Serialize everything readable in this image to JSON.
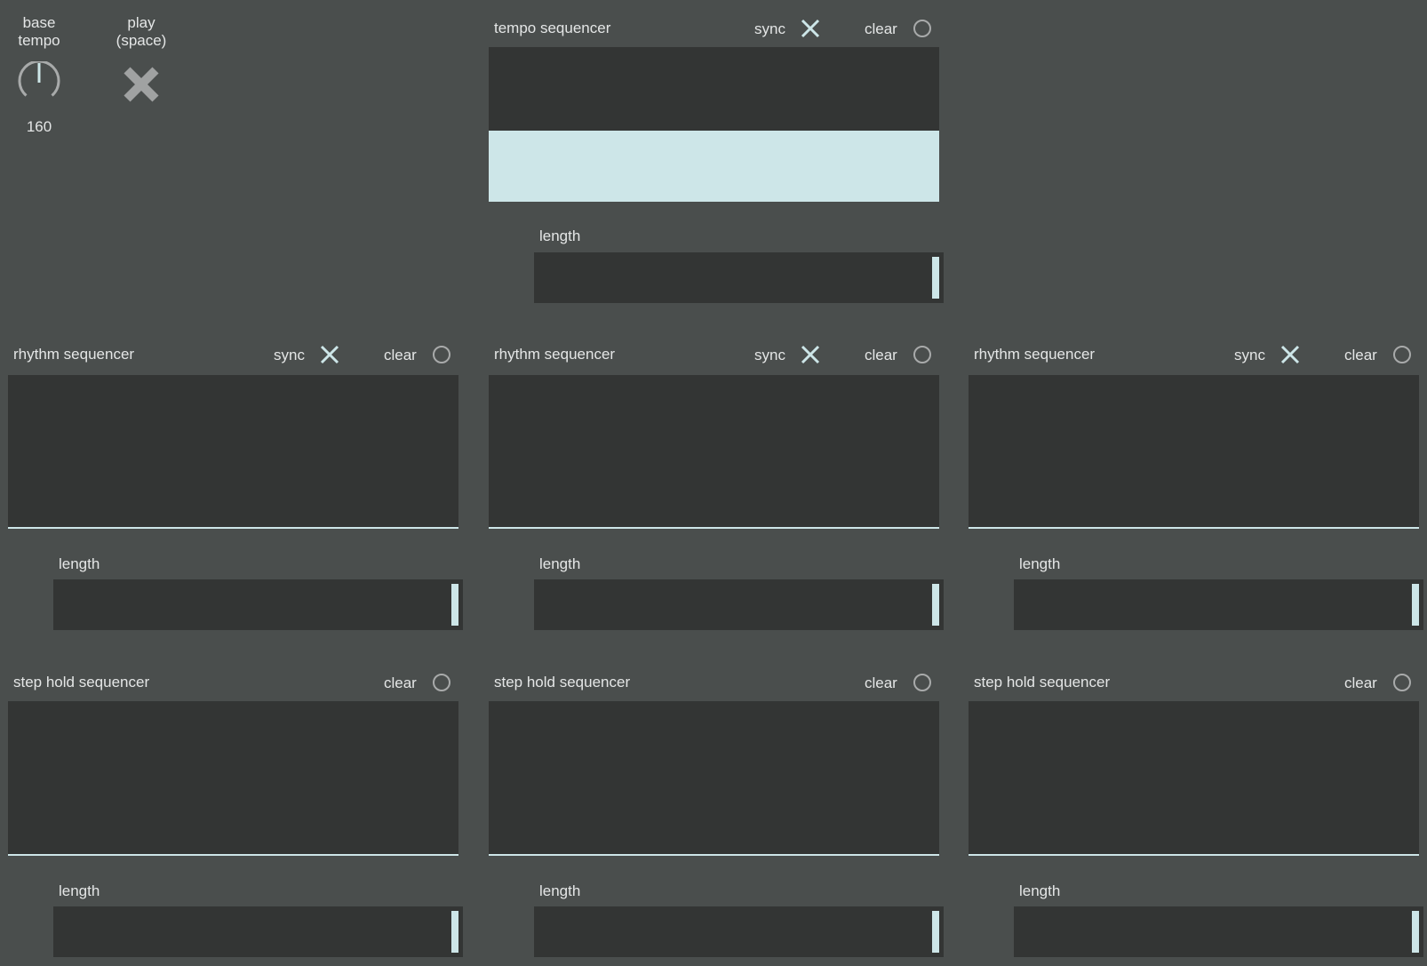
{
  "controls": {
    "base_tempo_label_1": "base",
    "base_tempo_label_2": "tempo",
    "base_tempo_value": "160",
    "play_label_1": "play",
    "play_label_2": "(space)",
    "play_icon": "x-cross-icon"
  },
  "tempo_sequencer": {
    "title": "tempo sequencer",
    "sync_label": "sync",
    "sync_checked": true,
    "clear_label": "clear",
    "length_label": "length",
    "length_value": 1.0
  },
  "rhythm_sequencers": [
    {
      "title": "rhythm sequencer",
      "sync_label": "sync",
      "sync_checked": true,
      "clear_label": "clear",
      "length_label": "length"
    },
    {
      "title": "rhythm sequencer",
      "sync_label": "sync",
      "sync_checked": true,
      "clear_label": "clear",
      "length_label": "length"
    },
    {
      "title": "rhythm sequencer",
      "sync_label": "sync",
      "sync_checked": true,
      "clear_label": "clear",
      "length_label": "length"
    }
  ],
  "step_hold_sequencers": [
    {
      "title": "step hold sequencer",
      "clear_label": "clear",
      "length_label": "length"
    },
    {
      "title": "step hold sequencer",
      "clear_label": "clear",
      "length_label": "length"
    },
    {
      "title": "step hold sequencer",
      "clear_label": "clear",
      "length_label": "length"
    }
  ],
  "colors": {
    "background": "#4a4e4d",
    "panel": "#333534",
    "accent": "#cde6e8"
  }
}
